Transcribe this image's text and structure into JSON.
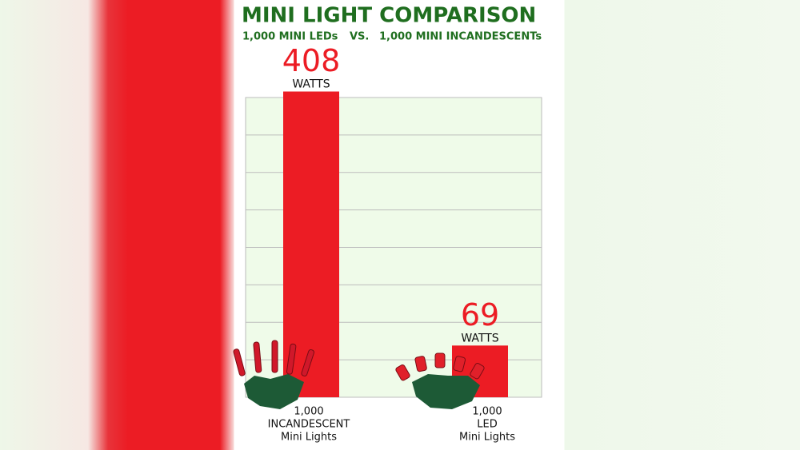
{
  "chart_data": {
    "type": "bar",
    "title": "MINI LIGHT COMPARISON",
    "subtitle": [
      "1,000 MINI LEDs",
      "VS.",
      "1,000 MINI INCANDESCENTs"
    ],
    "categories": [
      [
        "1,000",
        "INCANDESCENT",
        "Mini Lights"
      ],
      [
        "1,000",
        "LED",
        "Mini Lights"
      ]
    ],
    "values": [
      408,
      69
    ],
    "value_unit": "WATTS",
    "color": "#ec1c24",
    "ylim": [
      0,
      400
    ],
    "yticks": [
      0,
      50,
      100,
      150,
      200,
      250,
      300,
      350,
      400
    ],
    "grid": true
  }
}
